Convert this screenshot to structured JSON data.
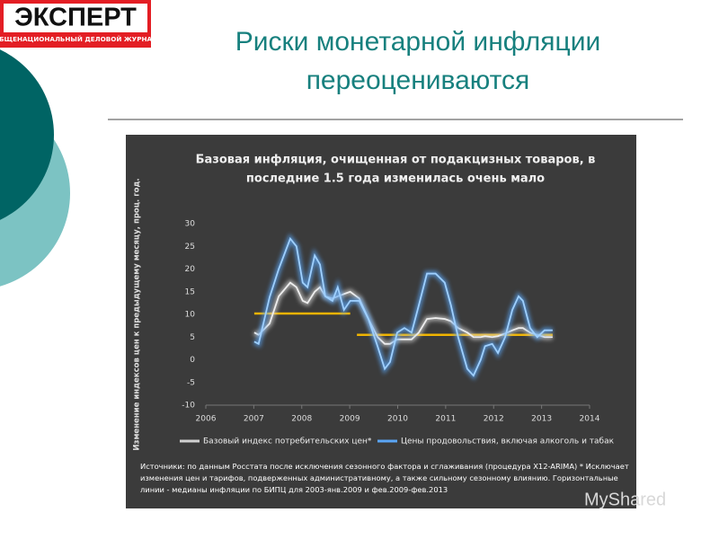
{
  "logo": {
    "name": "ЭКСПЕРТ",
    "tagline": "ОБЩЕНАЦИОНАЛЬНЫЙ ДЕЛОВОЙ ЖУРНАЛ"
  },
  "slide_title": [
    "Риски монетарной инфляции",
    "переоцениваются"
  ],
  "watermark": "MyShared",
  "chart_data": {
    "type": "line",
    "title": [
      "Базовая инфляция, очищенная от подакцизных товаров, в",
      "последние 1.5 года изменилась очень мало"
    ],
    "y_label": "Изменение индексов цен к предыдущему месяцу, проц. год.",
    "x": [
      2007.01,
      2007.1,
      2007.33,
      2007.52,
      2007.76,
      2007.89,
      2008.02,
      2008.12,
      2008.27,
      2008.38,
      2008.49,
      2008.64,
      2008.75,
      2008.88,
      2009.01,
      2009.2,
      2009.39,
      2009.58,
      2009.73,
      2009.84,
      2009.99,
      2010.14,
      2010.29,
      2010.44,
      2010.61,
      2010.79,
      2010.98,
      2011.11,
      2011.26,
      2011.45,
      2011.58,
      2011.73,
      2011.82,
      2011.97,
      2012.09,
      2012.24,
      2012.39,
      2012.52,
      2012.61,
      2012.76,
      2012.91,
      2013.06,
      2013.23
    ],
    "series": [
      {
        "name": "Базовый индекс потребительских цен*",
        "color": "#d0d0d0",
        "values": [
          6,
          5.5,
          8,
          14,
          17,
          16,
          13,
          12.5,
          15,
          16,
          14,
          13.5,
          14,
          14.5,
          15,
          13.5,
          9,
          5,
          3.5,
          3.5,
          4.5,
          4.5,
          4.5,
          6,
          9,
          9.2,
          9,
          8.5,
          7,
          6,
          5,
          5,
          5.2,
          5,
          5.2,
          5.8,
          6.5,
          7,
          7,
          6,
          5.5,
          5,
          5
        ]
      },
      {
        "name": "Цены продовольствия, включая алкоголь и табак",
        "color": "#5aa5f5",
        "values": [
          4,
          3.5,
          13.8,
          20,
          26.7,
          25,
          17,
          16,
          23,
          21,
          14,
          13,
          16,
          11,
          13,
          13,
          9,
          3,
          -2,
          -0.5,
          6,
          7,
          6,
          12,
          19,
          19,
          17,
          12,
          5,
          -2,
          -3.5,
          0,
          3,
          3.5,
          1.5,
          5,
          11,
          14,
          13,
          7,
          5,
          6.5,
          6.5
        ]
      }
    ],
    "reference_lines": [
      {
        "x": [
          2007.01,
          2009.01
        ],
        "y": 10.2,
        "color": "#f0b400"
      },
      {
        "x": [
          2009.15,
          2013.23
        ],
        "y": 5.5,
        "color": "#f0b400"
      }
    ],
    "xlim": [
      2006,
      2014
    ],
    "xticks": [
      2006,
      2007,
      2008,
      2009,
      2010,
      2011,
      2012,
      2013,
      2014
    ],
    "ylim": [
      -10,
      30
    ],
    "yticks": [
      -10,
      -5,
      0,
      5,
      10,
      15,
      20,
      25,
      30
    ],
    "legend": "bottom",
    "note": "Источники: по данным Росстата после исключения сезонного фактора и сглаживания (процедура X12-ARIMA) * Исключает изменения цен и тарифов, подверженных административному, а также сильному сезонному влиянию. Горизонтальные линии - медианы инфляции по БИПЦ для 2003-янв.2009 и фев.2009-фев.2013"
  }
}
